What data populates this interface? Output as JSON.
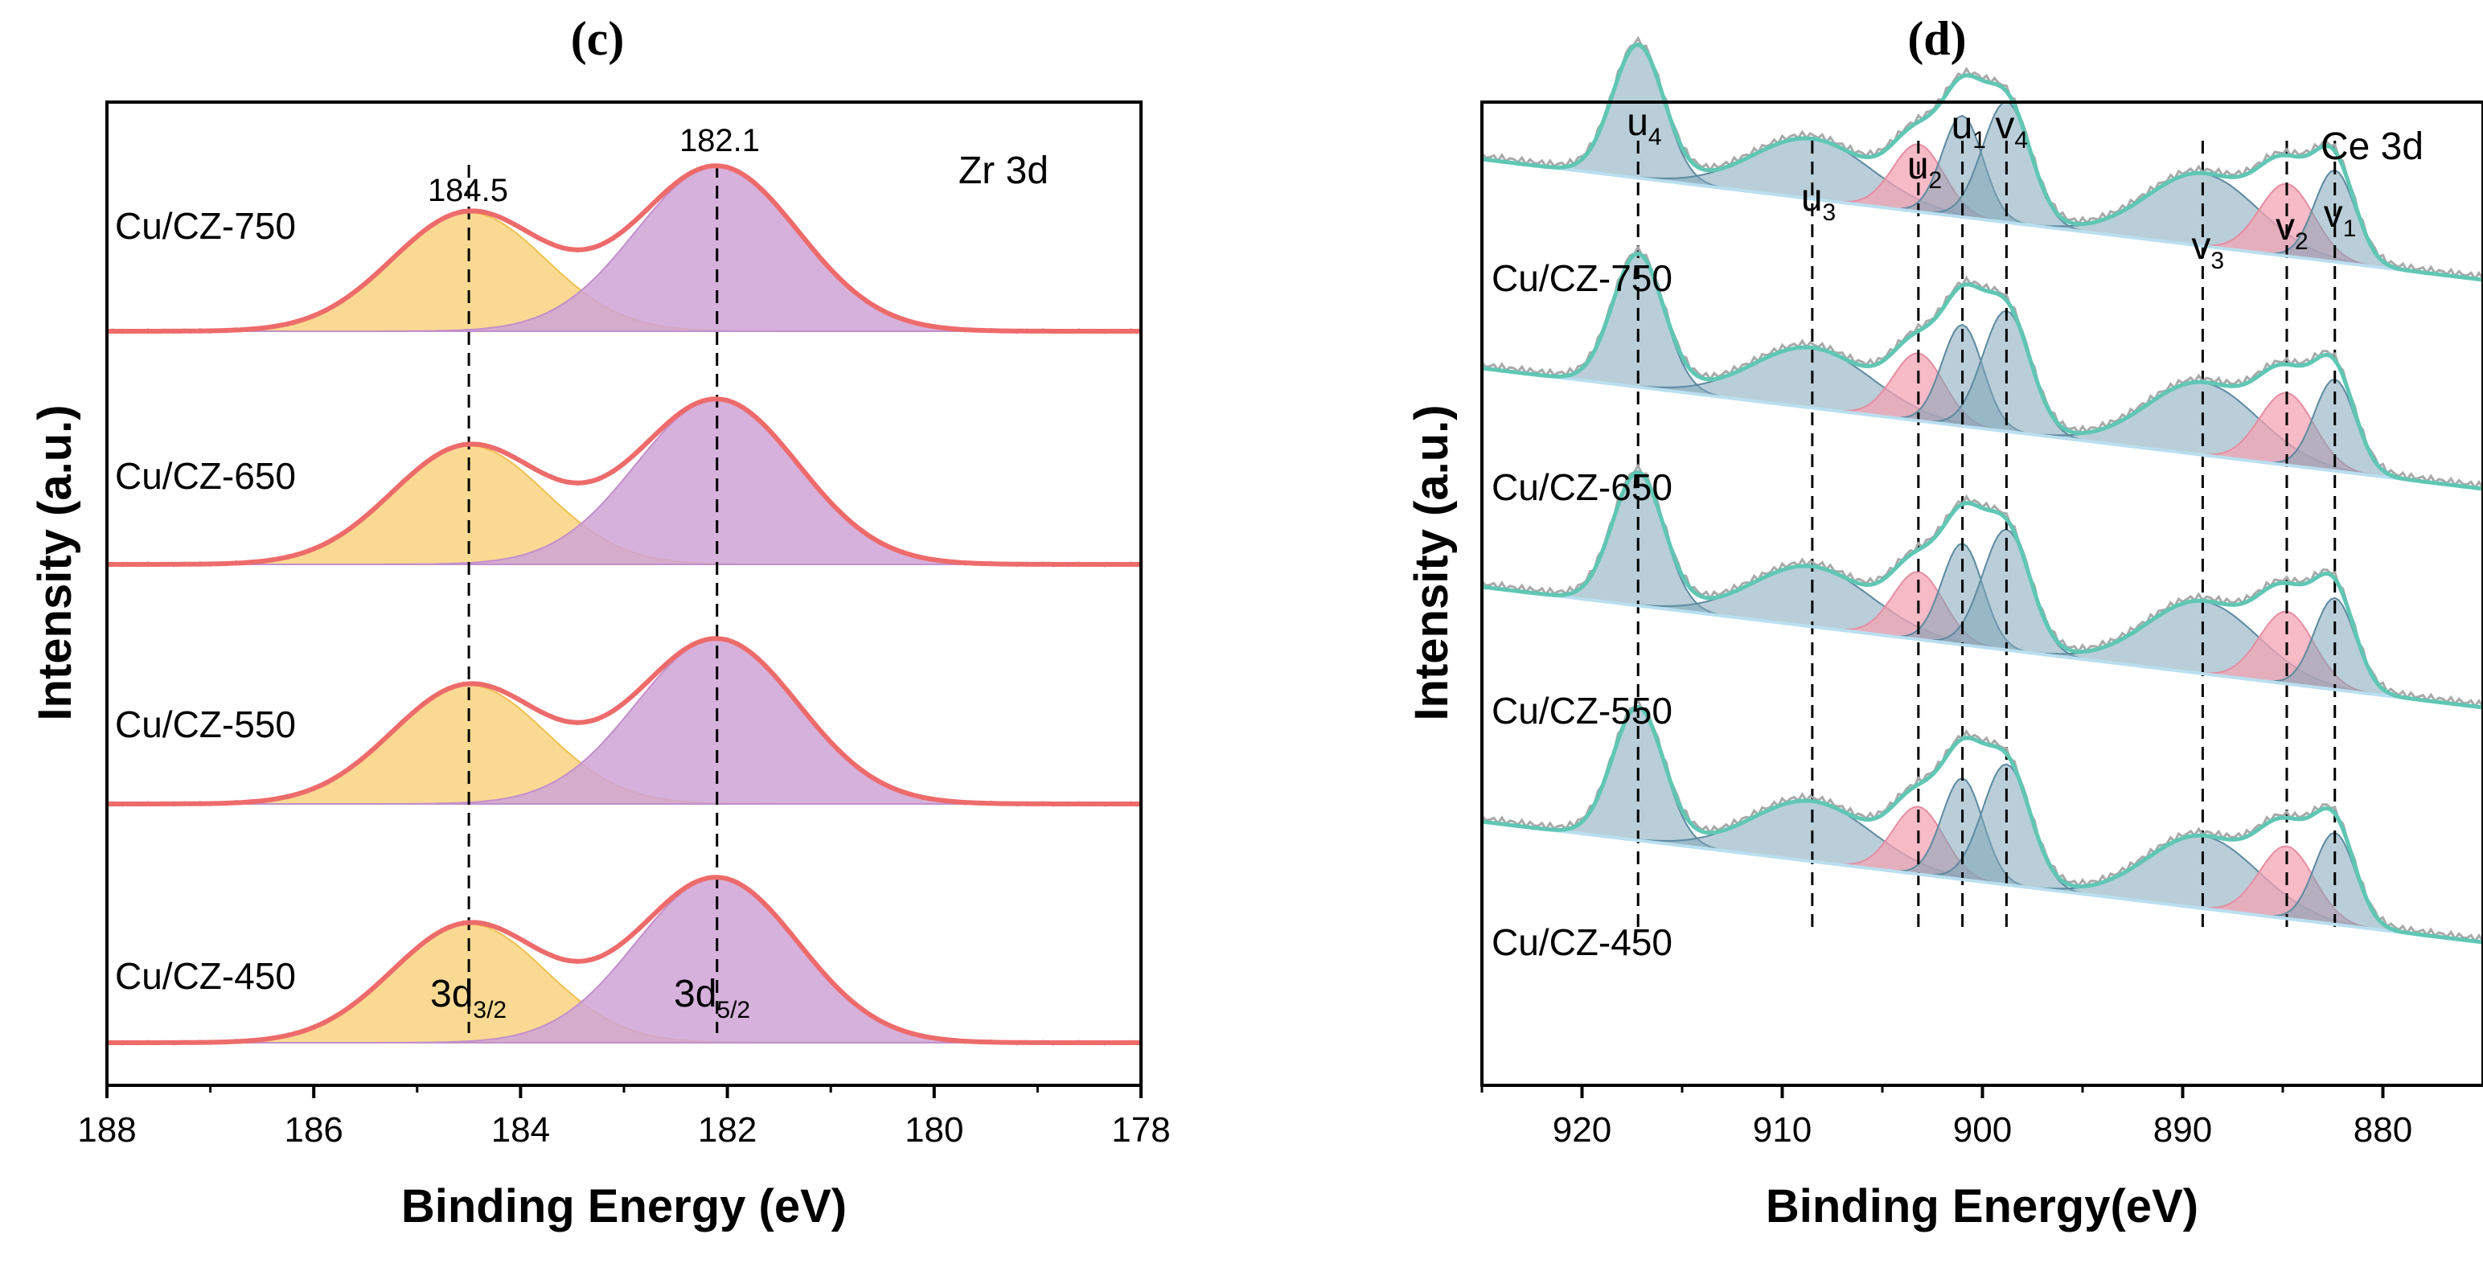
{
  "chart_data": [
    {
      "type": "line",
      "panel": "(c)",
      "title": "Zr 3d",
      "xlabel": "Binding Energy (eV)",
      "ylabel": "Intensity (a.u.)",
      "xlim": [
        188,
        178
      ],
      "x_reversed": true,
      "xticks": [
        188,
        186,
        184,
        182,
        180,
        178
      ],
      "yticks_shown": false,
      "colors": {
        "envelope": "#ee6b6b",
        "peak1": "#f9d47f",
        "peak2": "#cfa3d6",
        "raw": "#a9a9a9",
        "frame": "#000000"
      },
      "samples": [
        "Cu/CZ-750",
        "Cu/CZ-650",
        "Cu/CZ-550",
        "Cu/CZ-450"
      ],
      "peaks": [
        {
          "name": "3d3/2",
          "center": 184.5,
          "fwhm": 1.75,
          "relative_height": 0.72
        },
        {
          "name": "3d5/2",
          "center": 182.1,
          "fwhm": 1.85,
          "relative_height": 1.0
        }
      ],
      "annotations": {
        "peak_positions": [
          "184.5",
          "182.1"
        ],
        "peak_label_1": {
          "main": "3d",
          "sub": "3/2"
        },
        "peak_label_2": {
          "main": "3d",
          "sub": "5/2"
        },
        "dashed_lines_at": [
          184.5,
          182.1
        ]
      }
    },
    {
      "type": "line",
      "panel": "(d)",
      "title": "Ce 3d",
      "xlabel": "Binding Energy(eV)",
      "ylabel": "Intensity (a.u.)",
      "xlim": [
        925,
        875
      ],
      "x_reversed": true,
      "xticks": [
        920,
        910,
        900,
        890,
        880
      ],
      "yticks_shown": false,
      "colors": {
        "envelope": "#5fc7b4",
        "ce4": "#7fa6b8",
        "ce3": "#f4a3b4",
        "raw": "#a9a9a9",
        "baseline": "#b9dff0",
        "frame": "#000000"
      },
      "samples": [
        "Cu/CZ-750",
        "Cu/CZ-650",
        "Cu/CZ-550",
        "Cu/CZ-450"
      ],
      "peak_labels": [
        {
          "main": "u",
          "sub": "4",
          "x": 917.2
        },
        {
          "main": "u",
          "sub": "3",
          "x": 908.5
        },
        {
          "main": "u",
          "sub": "2",
          "x": 903.2
        },
        {
          "main": "u",
          "sub": "1",
          "x": 901.0
        },
        {
          "main": "v",
          "sub": "4",
          "x": 898.8
        },
        {
          "main": "v",
          "sub": "3",
          "x": 889.0
        },
        {
          "main": "v",
          "sub": "2",
          "x": 884.8
        },
        {
          "main": "v",
          "sub": "1",
          "x": 882.4
        }
      ],
      "components": [
        {
          "name": "u4",
          "center": 917.2,
          "fwhm": 3.0,
          "height": 0.55,
          "kind": "Ce4+"
        },
        {
          "name": "u3",
          "center": 908.5,
          "fwhm": 7.0,
          "height": 0.25,
          "kind": "Ce4+"
        },
        {
          "name": "u2",
          "center": 903.2,
          "fwhm": 3.0,
          "height": 0.28,
          "kind": "Ce3+"
        },
        {
          "name": "u1",
          "center": 901.0,
          "fwhm": 2.4,
          "height": 0.42,
          "kind": "Ce4+"
        },
        {
          "name": "v4",
          "center": 898.8,
          "fwhm": 2.8,
          "height": 0.5,
          "kind": "Ce4+"
        },
        {
          "name": "v3",
          "center": 889.0,
          "fwhm": 6.5,
          "height": 0.3,
          "kind": "Ce4+"
        },
        {
          "name": "v2",
          "center": 884.8,
          "fwhm": 3.2,
          "height": 0.3,
          "kind": "Ce3+"
        },
        {
          "name": "v1",
          "center": 882.4,
          "fwhm": 2.4,
          "height": 0.38,
          "kind": "Ce4+"
        }
      ],
      "dashed_lines_at": [
        917.2,
        908.5,
        903.2,
        901.0,
        898.8,
        889.0,
        884.8,
        882.4
      ]
    }
  ]
}
